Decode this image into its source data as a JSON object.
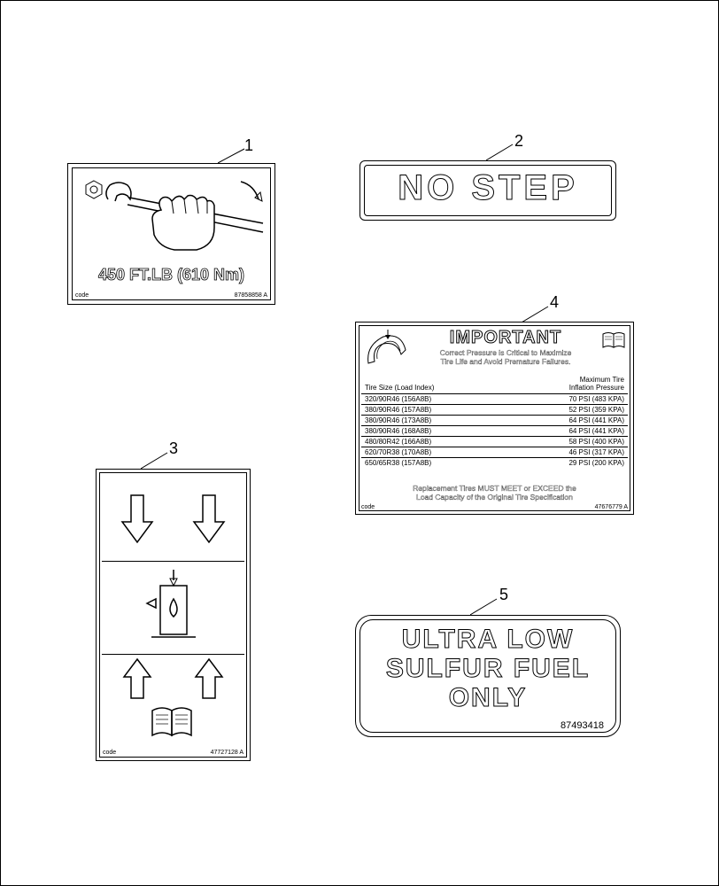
{
  "callouts": {
    "n1": "1",
    "n2": "2",
    "n3": "3",
    "n4": "4",
    "n5": "5"
  },
  "decal1": {
    "torque_text": "450 FT.LB  (610 Nm)",
    "code_label": "code",
    "part_no": "87858858 A"
  },
  "decal2": {
    "text": "NO  STEP"
  },
  "decal3": {
    "code_label": "code",
    "part_no": "47727128 A"
  },
  "decal4": {
    "title": "IMPORTANT",
    "subtitle1": "Correct Pressure is Critical to Maximize",
    "subtitle2": "Tire Life and Avoid Premature Failures.",
    "col1_header": "Tire Size (Load Index)",
    "col2_header1": "Maximum Tire",
    "col2_header2": "Inflation Pressure",
    "rows": [
      {
        "size": "320/90R46 (156A8B)",
        "pressure": "70 PSI (483 KPA)"
      },
      {
        "size": "380/90R46 (157A8B)",
        "pressure": "52 PSI (359 KPA)"
      },
      {
        "size": "380/90R46 (173A8B)",
        "pressure": "64 PSI (441 KPA)"
      },
      {
        "size": "380/90R46 (168A8B)",
        "pressure": "64 PSI (441 KPA)"
      },
      {
        "size": "480/80R42 (166A8B)",
        "pressure": "58 PSI (400 KPA)"
      },
      {
        "size": "620/70R38 (170A8B)",
        "pressure": "46 PSI (317 KPA)"
      },
      {
        "size": "650/65R38 (157A8B)",
        "pressure": "29 PSI (200 KPA)"
      }
    ],
    "footer1": "Replacement Tires MUST MEET or EXCEED the",
    "footer2": "Load Capacity of the Original Tire Specification",
    "code_label": "code",
    "part_no": "47676779 A"
  },
  "decal5": {
    "line1": "ULTRA LOW",
    "line2": "SULFUR FUEL",
    "line3": "ONLY",
    "part_no": "87493418"
  }
}
